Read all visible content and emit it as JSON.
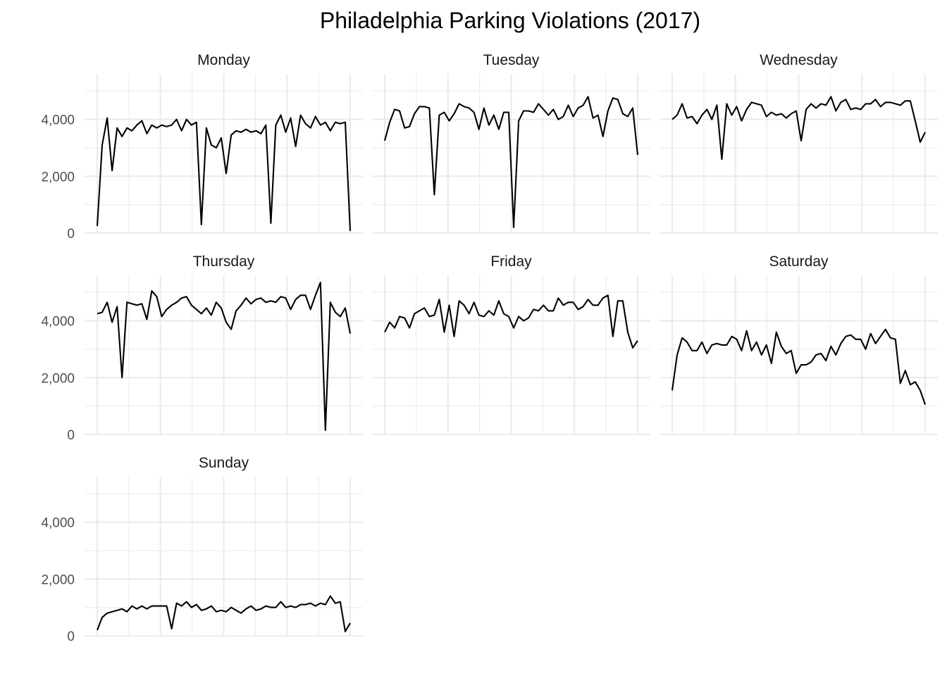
{
  "chart_data": {
    "type": "line",
    "title": "Philadelphia Parking Violations (2017)",
    "xlabel": "",
    "ylabel": "",
    "ylim": [
      0,
      5600
    ],
    "y_tick_values": [
      0,
      2000,
      4000
    ],
    "y_tick_labels": [
      "0",
      "2,000",
      "4,000"
    ],
    "grid": true,
    "x_axis_labels_shown": false,
    "facets": [
      {
        "label": "Monday",
        "values": [
          250,
          3100,
          4050,
          2200,
          3700,
          3400,
          3700,
          3600,
          3800,
          3950,
          3500,
          3800,
          3700,
          3800,
          3750,
          3800,
          4000,
          3600,
          4000,
          3800,
          3900,
          300,
          3700,
          3100,
          3000,
          3350,
          2100,
          3450,
          3600,
          3550,
          3650,
          3550,
          3600,
          3500,
          3800,
          350,
          3800,
          4150,
          3550,
          4050,
          3050,
          4150,
          3850,
          3700,
          4100,
          3800,
          3900,
          3600,
          3900,
          3850,
          3900,
          80
        ]
      },
      {
        "label": "Tuesday",
        "values": [
          3250,
          3900,
          4350,
          4300,
          3700,
          3750,
          4200,
          4450,
          4450,
          4400,
          1350,
          4150,
          4250,
          3950,
          4200,
          4550,
          4450,
          4400,
          4250,
          3650,
          4400,
          3800,
          4150,
          3650,
          4250,
          4250,
          200,
          3950,
          4300,
          4300,
          4250,
          4550,
          4350,
          4150,
          4350,
          4000,
          4100,
          4500,
          4100,
          4400,
          4500,
          4800,
          4050,
          4150,
          3400,
          4300,
          4750,
          4700,
          4200,
          4100,
          4400,
          2750
        ]
      },
      {
        "label": "Wednesday",
        "values": [
          4000,
          4150,
          4550,
          4050,
          4100,
          3850,
          4150,
          4350,
          4000,
          4500,
          2600,
          4550,
          4150,
          4450,
          3950,
          4350,
          4600,
          4550,
          4500,
          4100,
          4250,
          4150,
          4200,
          4050,
          4200,
          4300,
          3250,
          4350,
          4550,
          4400,
          4550,
          4500,
          4800,
          4300,
          4600,
          4700,
          4350,
          4400,
          4350,
          4550,
          4550,
          4700,
          4450,
          4600,
          4600,
          4550,
          4500,
          4650,
          4650,
          3950,
          3200,
          3550
        ]
      },
      {
        "label": "Thursday",
        "values": [
          4250,
          4300,
          4650,
          3950,
          4500,
          2000,
          4650,
          4600,
          4550,
          4600,
          4050,
          5050,
          4850,
          4150,
          4400,
          4550,
          4650,
          4800,
          4850,
          4550,
          4400,
          4250,
          4450,
          4200,
          4650,
          4450,
          3950,
          3700,
          4350,
          4550,
          4800,
          4600,
          4750,
          4800,
          4650,
          4700,
          4650,
          4850,
          4800,
          4400,
          4750,
          4900,
          4900,
          4400,
          4900,
          5350,
          150,
          4650,
          4300,
          4150,
          4450,
          3550
        ]
      },
      {
        "label": "Friday",
        "values": [
          3600,
          3950,
          3750,
          4150,
          4100,
          3750,
          4250,
          4350,
          4450,
          4150,
          4200,
          4750,
          3600,
          4550,
          3450,
          4700,
          4550,
          4250,
          4650,
          4200,
          4150,
          4350,
          4200,
          4700,
          4250,
          4150,
          3750,
          4150,
          4000,
          4100,
          4400,
          4350,
          4550,
          4350,
          4350,
          4800,
          4550,
          4650,
          4650,
          4400,
          4500,
          4750,
          4550,
          4550,
          4800,
          4900,
          3450,
          4700,
          4700,
          3600,
          3050,
          3300
        ]
      },
      {
        "label": "Saturday",
        "values": [
          1550,
          2800,
          3400,
          3250,
          2950,
          2950,
          3250,
          2850,
          3150,
          3200,
          3150,
          3150,
          3450,
          3350,
          2950,
          3650,
          2950,
          3250,
          2800,
          3150,
          2500,
          3600,
          3100,
          2850,
          2950,
          2150,
          2450,
          2450,
          2550,
          2800,
          2850,
          2600,
          3100,
          2800,
          3200,
          3450,
          3500,
          3350,
          3350,
          3000,
          3550,
          3200,
          3450,
          3700,
          3400,
          3350,
          1800,
          2250,
          1750,
          1850,
          1550,
          1050
        ]
      },
      {
        "label": "Sunday",
        "values": [
          200,
          650,
          800,
          850,
          900,
          950,
          850,
          1050,
          950,
          1050,
          950,
          1050,
          1050,
          1050,
          1050,
          250,
          1150,
          1050,
          1200,
          1000,
          1100,
          900,
          950,
          1050,
          850,
          900,
          850,
          1000,
          900,
          800,
          950,
          1050,
          900,
          950,
          1050,
          1000,
          1000,
          1200,
          1000,
          1050,
          1000,
          1100,
          1100,
          1150,
          1050,
          1150,
          1100,
          1400,
          1150,
          1200,
          150,
          450
        ]
      }
    ]
  }
}
